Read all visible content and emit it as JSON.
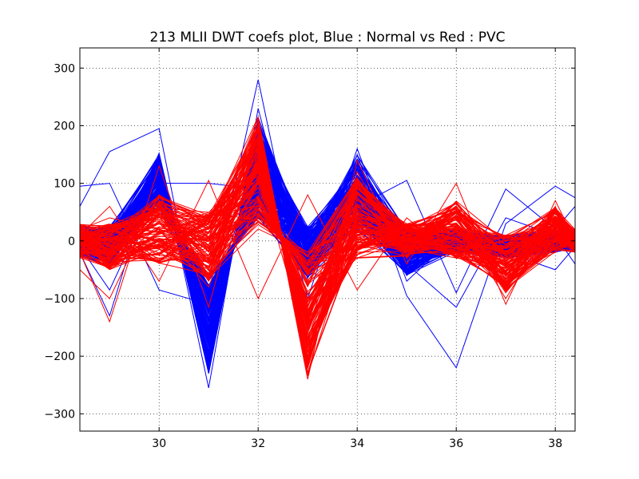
{
  "chart_data": {
    "type": "line",
    "title": "213 MLII DWT coefs plot, Blue : Normal vs Red : PVC",
    "xlabel": "",
    "ylabel": "",
    "xlim": [
      28.4,
      38.4
    ],
    "ylim": [
      -330,
      335
    ],
    "x_ticks": [
      30,
      32,
      34,
      36,
      38
    ],
    "y_ticks": [
      300,
      200,
      100,
      0,
      -100,
      -200,
      -300
    ],
    "x_tick_labels": [
      "30",
      "32",
      "34",
      "36",
      "38"
    ],
    "y_tick_labels": [
      "300",
      "200",
      "100",
      "0",
      "−100",
      "−200",
      "−300"
    ],
    "grid": true,
    "legend": "none",
    "x": [
      28.4,
      29,
      30,
      31,
      32,
      33,
      34,
      35,
      36,
      37,
      38,
      38.4
    ],
    "groups": [
      {
        "label": "Normal",
        "color": "#0000ff",
        "representative_series": [
          {
            "values": [
              10,
              -30,
              120,
              -200,
              180,
              -40,
              120,
              -60,
              20,
              -30,
              10,
              5
            ]
          },
          {
            "values": [
              -20,
              -130,
              150,
              -255,
              230,
              -100,
              160,
              -70,
              10,
              -20,
              20,
              0
            ]
          },
          {
            "values": [
              95,
              100,
              -85,
              -110,
              280,
              -130,
              60,
              105,
              -90,
              90,
              20,
              60
            ]
          },
          {
            "values": [
              60,
              155,
              195,
              -230,
              200,
              -60,
              150,
              -95,
              -220,
              30,
              95,
              75
            ]
          },
          {
            "values": [
              0,
              20,
              60,
              -120,
              140,
              -20,
              80,
              -40,
              -115,
              40,
              10,
              -40
            ]
          },
          {
            "values": [
              -10,
              -85,
              100,
              100,
              90,
              -50,
              60,
              -20,
              5,
              -20,
              -50,
              -10
            ]
          }
        ]
      },
      {
        "label": "PVC",
        "color": "#ff0000",
        "representative_series": [
          {
            "values": [
              -20,
              -140,
              130,
              -115,
              200,
              -240,
              140,
              -40,
              100,
              -110,
              70,
              0
            ]
          },
          {
            "values": [
              10,
              60,
              -70,
              105,
              -100,
              80,
              -85,
              40,
              -30,
              -20,
              -20,
              10
            ]
          },
          {
            "values": [
              -50,
              -100,
              80,
              -60,
              180,
              -200,
              120,
              -30,
              60,
              -80,
              50,
              -10
            ]
          },
          {
            "values": [
              20,
              40,
              20,
              -80,
              150,
              -150,
              80,
              20,
              40,
              -100,
              40,
              5
            ]
          },
          {
            "values": [
              0,
              -20,
              60,
              30,
              120,
              -180,
              100,
              10,
              20,
              -60,
              60,
              -20
            ]
          }
        ]
      }
    ]
  }
}
